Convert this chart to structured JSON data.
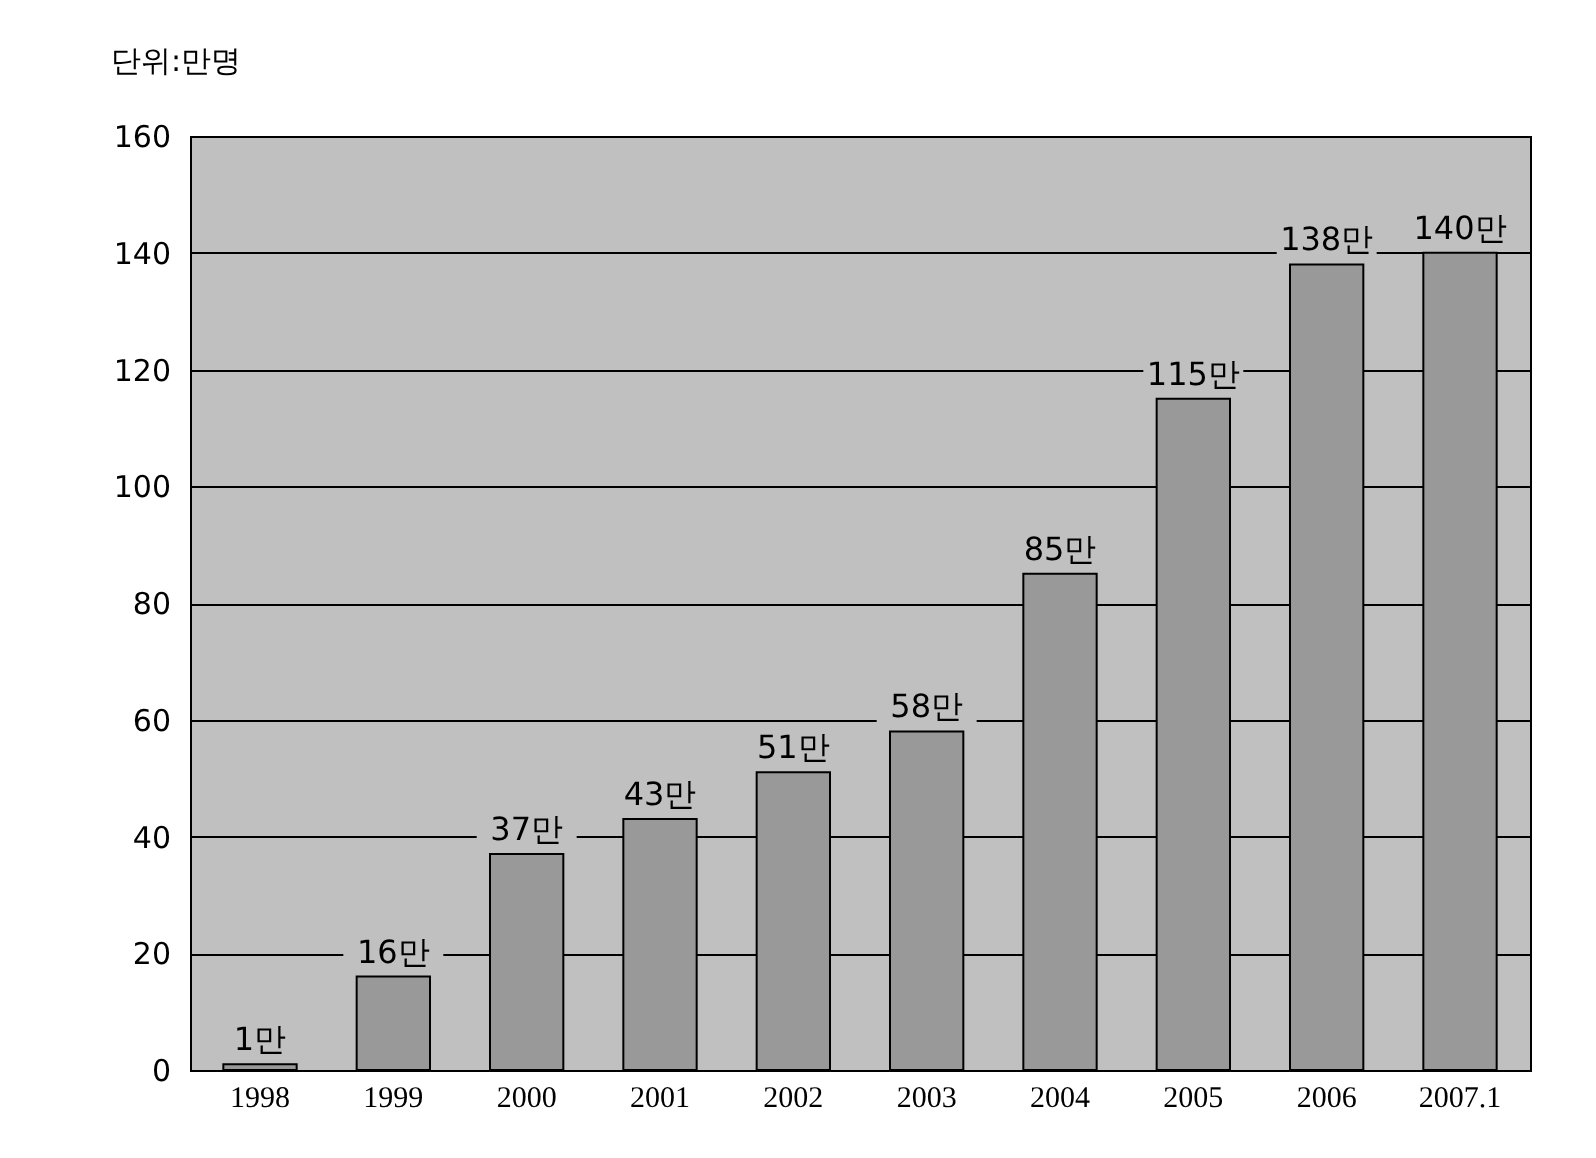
{
  "chart_data": {
    "type": "bar",
    "ylabel": "단위:만명",
    "categories": [
      "1998",
      "1999",
      "2000",
      "2001",
      "2002",
      "2003",
      "2004",
      "2005",
      "2006",
      "2007.1"
    ],
    "values": [
      1,
      16,
      37,
      43,
      51,
      58,
      85,
      115,
      138,
      140
    ],
    "value_labels": [
      "1만",
      "16만",
      "37만",
      "43만",
      "51만",
      "58만",
      "85만",
      "115만",
      "138만",
      "140만"
    ],
    "color": "#999999",
    "ylim": [
      0,
      160
    ],
    "yticks": [
      0,
      20,
      40,
      60,
      80,
      100,
      120,
      140,
      160
    ],
    "grid": "y"
  }
}
